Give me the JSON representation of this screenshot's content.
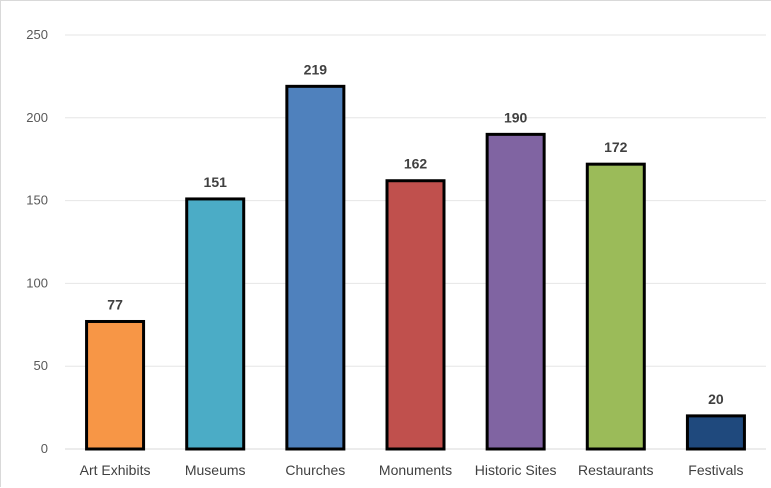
{
  "chart_data": {
    "type": "bar",
    "title": "",
    "xlabel": "",
    "ylabel": "",
    "categories": [
      "Art Exhibits",
      "Museums",
      "Churches",
      "Monuments",
      "Historic Sites",
      "Restaurants",
      "Festivals"
    ],
    "values": [
      77,
      151,
      219,
      162,
      190,
      172,
      20
    ],
    "colors": [
      "#F79646",
      "#4BACC6",
      "#4F81BD",
      "#C0504D",
      "#8064A2",
      "#9BBB59",
      "#1F497D"
    ],
    "ylim": [
      0,
      250
    ],
    "yticks": [
      0,
      50,
      100,
      150,
      200,
      250
    ],
    "grid": true,
    "legend": "none",
    "data_labels": true
  }
}
